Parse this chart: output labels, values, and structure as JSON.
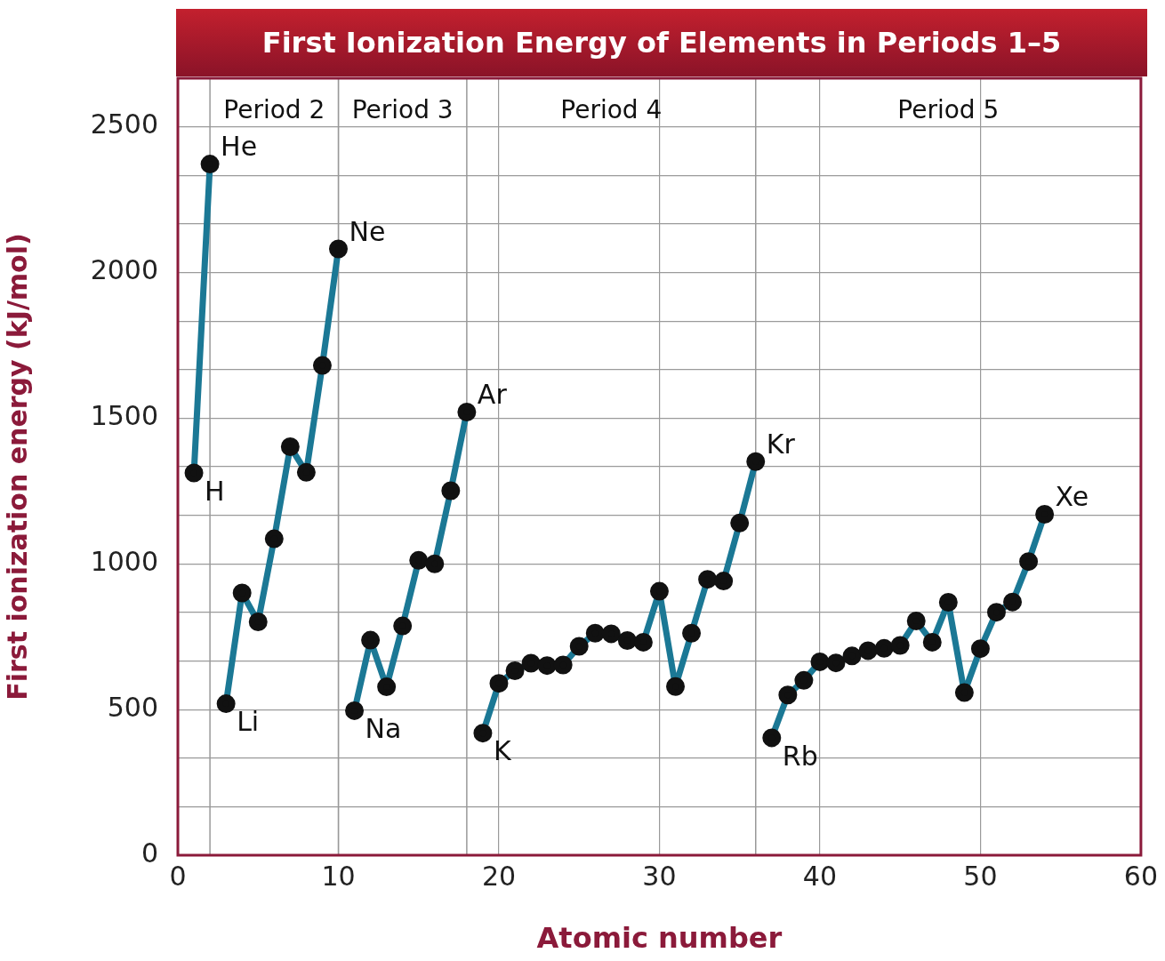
{
  "chart_data": {
    "type": "line",
    "title": "First Ionization Energy of Elements in Periods 1–5",
    "xlabel": "Atomic number",
    "ylabel": "First ionization energy (kJ/mol)",
    "series": [
      {
        "color": "#1b7895",
        "x": [
          1,
          2
        ],
        "values": [
          1312,
          2372
        ]
      },
      {
        "color": "#1b7895",
        "x": [
          3,
          4,
          5,
          6,
          7,
          8,
          9,
          10
        ],
        "values": [
          520,
          900,
          801,
          1086,
          1402,
          1314,
          1681,
          2081
        ]
      },
      {
        "color": "#1b7895",
        "x": [
          11,
          12,
          13,
          14,
          15,
          16,
          17,
          18
        ],
        "values": [
          496,
          738,
          578,
          787,
          1012,
          1000,
          1251,
          1521
        ]
      },
      {
        "color": "#1b7895",
        "x": [
          19,
          20,
          21,
          22,
          23,
          24,
          25,
          26,
          27,
          28,
          29,
          30,
          31,
          32,
          33,
          34,
          35,
          36
        ],
        "values": [
          419,
          590,
          633,
          659,
          651,
          653,
          717,
          762,
          760,
          737,
          731,
          906,
          579,
          762,
          947,
          941,
          1140,
          1351
        ]
      },
      {
        "color": "#1b7895",
        "x": [
          37,
          38,
          39,
          40,
          41,
          42,
          43,
          44,
          45,
          46,
          47,
          48,
          49,
          50,
          51,
          52,
          53,
          54
        ],
        "values": [
          403,
          550,
          600,
          664,
          660,
          684,
          702,
          710,
          720,
          804,
          731,
          868,
          558,
          709,
          834,
          869,
          1008,
          1170
        ]
      }
    ],
    "annotations": [
      {
        "text": "H",
        "x": 1,
        "y": 1312
      },
      {
        "text": "He",
        "x": 2,
        "y": 2372
      },
      {
        "text": "Li",
        "x": 3,
        "y": 520
      },
      {
        "text": "Ne",
        "x": 10,
        "y": 2081
      },
      {
        "text": "Na",
        "x": 11,
        "y": 496
      },
      {
        "text": "Ar",
        "x": 18,
        "y": 1521
      },
      {
        "text": "K",
        "x": 19,
        "y": 419
      },
      {
        "text": "Kr",
        "x": 36,
        "y": 1351
      },
      {
        "text": "Rb",
        "x": 37,
        "y": 403
      },
      {
        "text": "Xe",
        "x": 54,
        "y": 1170
      },
      "Period 2",
      "Period 3",
      "Period 4",
      "Period 5"
    ],
    "ref_lines": [
      {
        "axis": "x",
        "value": 2,
        "color": "#999999"
      },
      {
        "axis": "x",
        "value": 10,
        "color": "#999999"
      },
      {
        "axis": "x",
        "value": 18,
        "color": "#999999"
      },
      {
        "axis": "x",
        "value": 36,
        "color": "#999999"
      }
    ],
    "xlim": [
      0,
      60
    ],
    "xticks": [
      0,
      10,
      20,
      30,
      40,
      50,
      60
    ],
    "ylim": [
      0,
      2666.7
    ],
    "yticks": [
      0,
      {
        "value": 166.7,
        "label": null
      },
      {
        "value": 333.3,
        "label": null
      },
      500,
      {
        "value": 666.7,
        "label": null
      },
      {
        "value": 833.3,
        "label": null
      },
      1000,
      {
        "value": 1166.7,
        "label": null
      },
      {
        "value": 1333.3,
        "label": null
      },
      1500,
      {
        "value": 1666.7,
        "label": null
      },
      {
        "value": 1833.3,
        "label": null
      },
      2000,
      {
        "value": 2166.7,
        "label": null
      },
      {
        "value": 2333.3,
        "label": null
      },
      2500,
      {
        "value": 2666.7,
        "label": null
      }
    ],
    "grid": true,
    "marker": "circle",
    "line_style": "solid",
    "legend": false
  }
}
